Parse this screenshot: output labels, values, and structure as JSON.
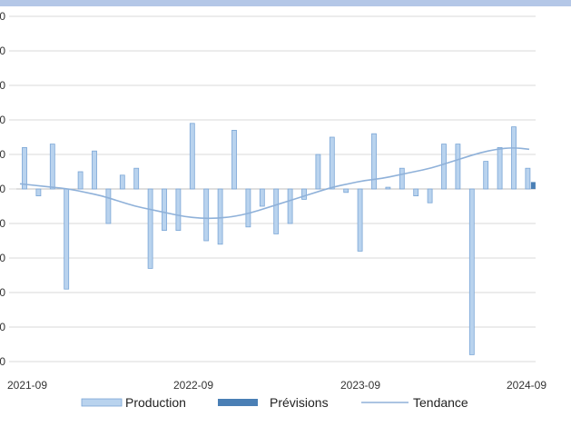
{
  "chart_data": {
    "type": "bar",
    "x_tick_labels": [
      "2021-09",
      "2022-09",
      "2023-09",
      "2024-09"
    ],
    "y_tick_labels": [
      "0",
      "0",
      "0",
      "0",
      "0",
      "0",
      "0",
      "0",
      "0",
      "0",
      "0"
    ],
    "ylim": [
      -5,
      5
    ],
    "grid": true,
    "legend_position": "bottom",
    "colors": {
      "production_fill": "#b9d3ee",
      "production_stroke": "#7aa6d6",
      "forecast": "#4a7fb5",
      "trend": "#8fb1d9",
      "grid": "#d9d9d9",
      "top_band": "#b4c7e7"
    },
    "series": [
      {
        "name": "Production",
        "values": [
          1.2,
          -0.2,
          1.3,
          -2.9,
          0.5,
          1.1,
          -1.0,
          0.4,
          0.6,
          -2.3,
          -1.2,
          -1.2,
          1.9,
          -1.5,
          -1.6,
          1.7,
          -1.1,
          -0.5,
          -1.3,
          -1.0,
          -0.3,
          1.0,
          1.5,
          -0.1,
          -1.8,
          1.6,
          0.05,
          0.6,
          -0.2,
          -0.4,
          1.3,
          1.3,
          -4.8,
          0.8,
          1.2,
          1.8,
          0.6
        ]
      },
      {
        "name": "Prévisions",
        "values": [
          0.2
        ]
      },
      {
        "name": "Tendance",
        "values": [
          0.15,
          0.1,
          0.05,
          0.0,
          -0.1,
          -0.2,
          -0.35,
          -0.5,
          -0.6,
          -0.7,
          -0.8,
          -0.85,
          -0.85,
          -0.8,
          -0.7,
          -0.55,
          -0.4,
          -0.25,
          -0.1,
          0.05,
          0.15,
          0.25,
          0.3,
          0.4,
          0.5,
          0.6,
          0.75,
          0.9,
          1.05,
          1.15,
          1.2,
          1.15
        ]
      }
    ]
  }
}
